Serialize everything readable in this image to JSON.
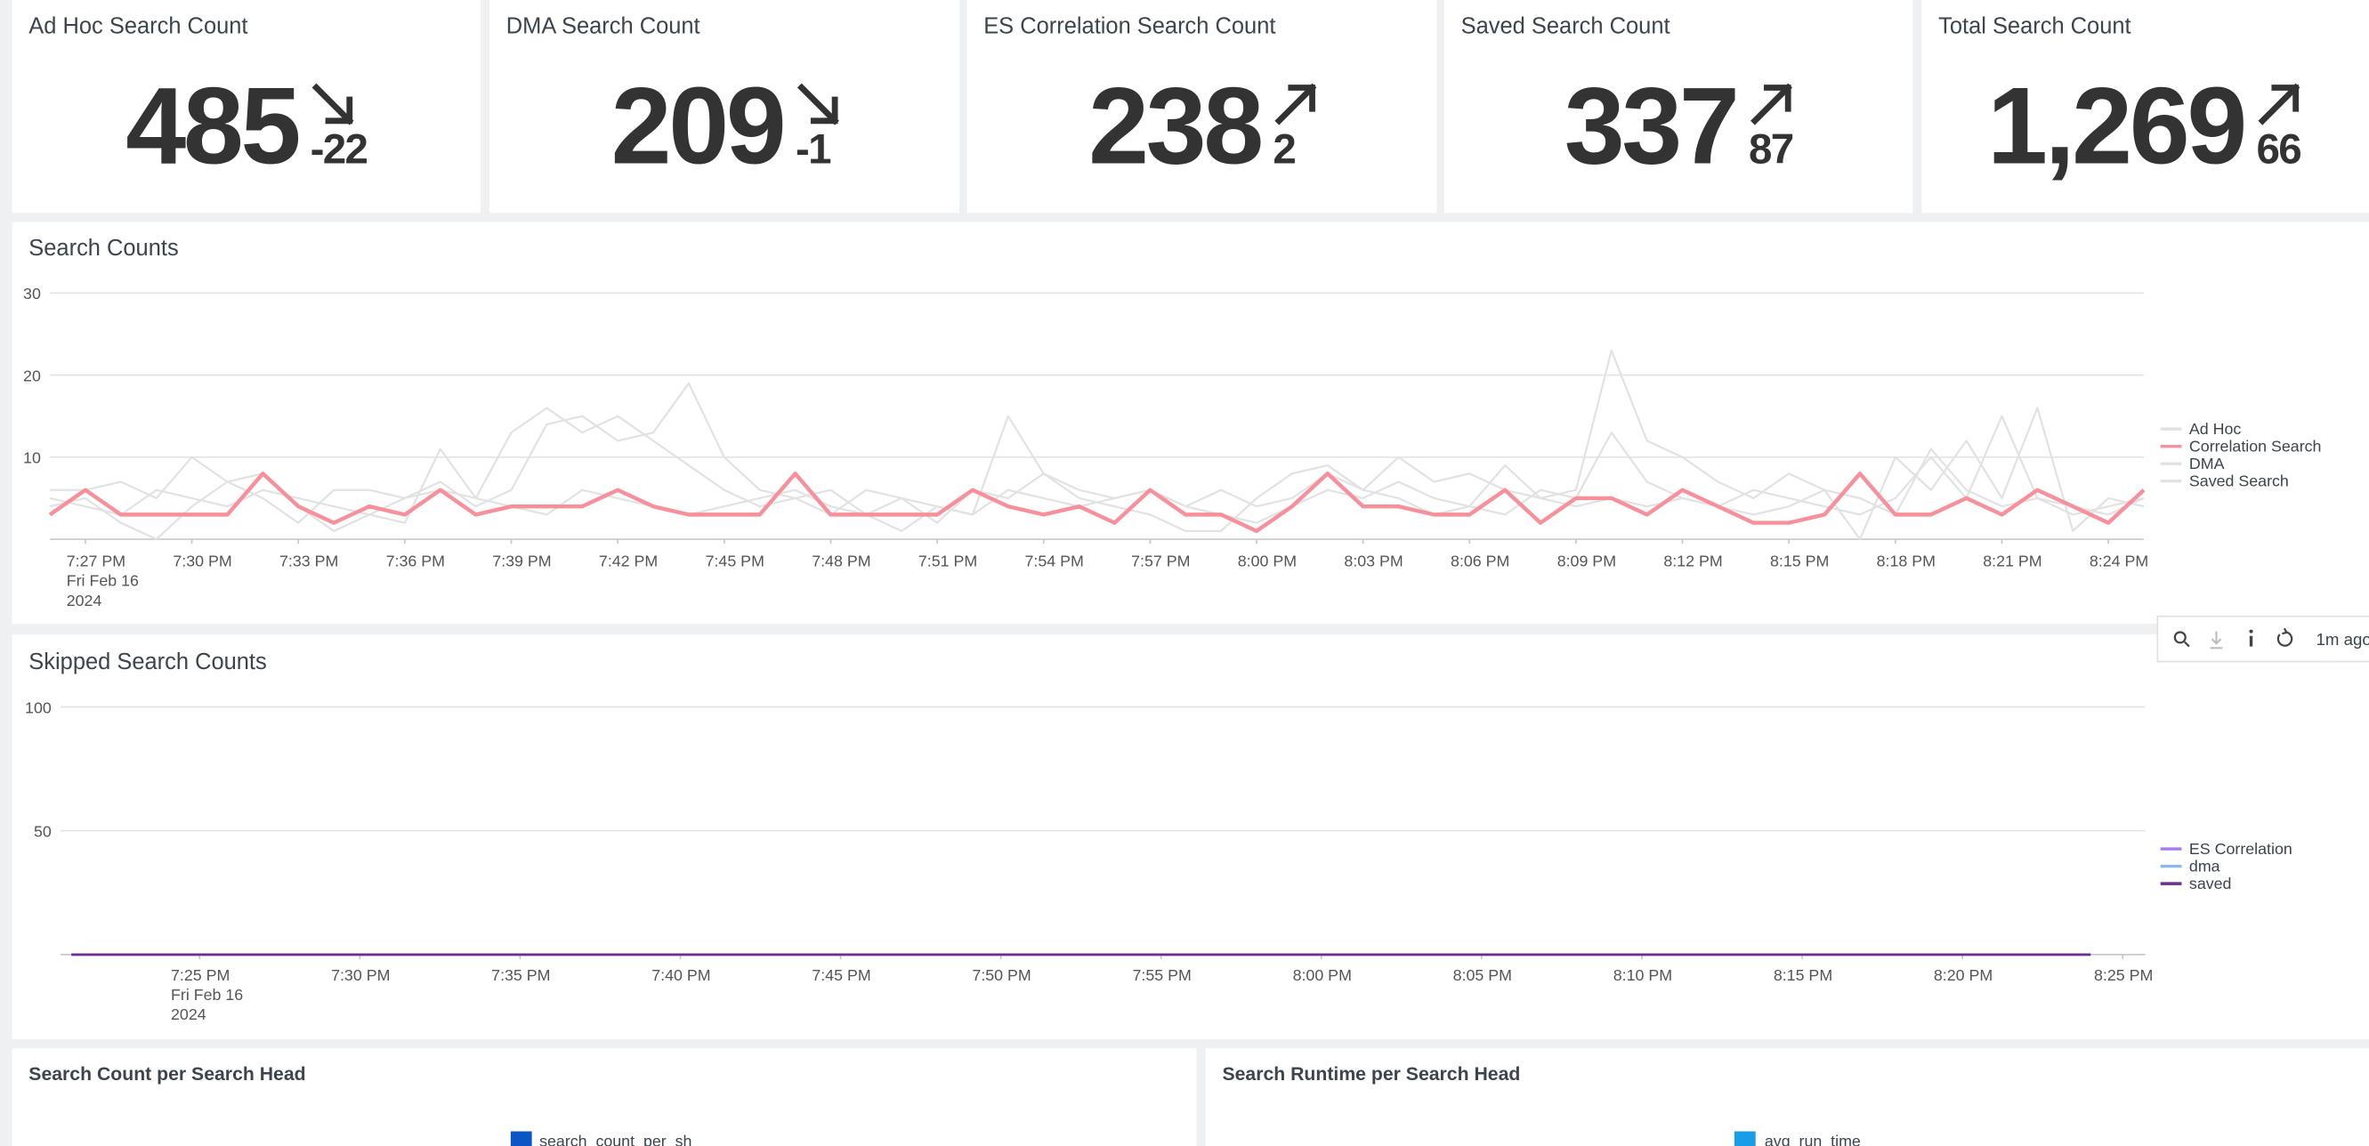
{
  "kpis": [
    {
      "title": "Ad Hoc Search Count",
      "value": "485",
      "delta": -22
    },
    {
      "title": "DMA Search Count",
      "value": "209",
      "delta": -1
    },
    {
      "title": "ES Correlation Search Count",
      "value": "238",
      "delta": 2
    },
    {
      "title": "Saved Search Count",
      "value": "337",
      "delta": 87
    },
    {
      "title": "Total Search Count",
      "value": "1,269",
      "delta": 66
    }
  ],
  "chart_data": [
    {
      "type": "line",
      "title": "Search Counts",
      "x": [
        "19:26",
        "19:27",
        "19:28",
        "19:29",
        "19:30",
        "19:31",
        "19:32",
        "19:33",
        "19:34",
        "19:35",
        "19:36",
        "19:37",
        "19:38",
        "19:39",
        "19:40",
        "19:41",
        "19:42",
        "19:43",
        "19:44",
        "19:45",
        "19:46",
        "19:47",
        "19:48",
        "19:49",
        "19:50",
        "19:51",
        "19:52",
        "19:53",
        "19:54",
        "19:55",
        "19:56",
        "19:57",
        "19:58",
        "19:59",
        "20:00",
        "20:01",
        "20:02",
        "20:03",
        "20:04",
        "20:05",
        "20:06",
        "20:07",
        "20:08",
        "20:09",
        "20:10",
        "20:11",
        "20:12",
        "20:13",
        "20:14",
        "20:15",
        "20:16",
        "20:17",
        "20:18",
        "20:19",
        "20:20",
        "20:21",
        "20:22",
        "20:23",
        "20:24",
        "20:25"
      ],
      "xlim": [
        "19:26",
        "20:25"
      ],
      "xticks": [
        {
          "value": "19:27",
          "label": "7:27 PM"
        },
        {
          "value": "19:30",
          "label": "7:30 PM"
        },
        {
          "value": "19:33",
          "label": "7:33 PM"
        },
        {
          "value": "19:36",
          "label": "7:36 PM"
        },
        {
          "value": "19:39",
          "label": "7:39 PM"
        },
        {
          "value": "19:42",
          "label": "7:42 PM"
        },
        {
          "value": "19:45",
          "label": "7:45 PM"
        },
        {
          "value": "19:48",
          "label": "7:48 PM"
        },
        {
          "value": "19:51",
          "label": "7:51 PM"
        },
        {
          "value": "19:54",
          "label": "7:54 PM"
        },
        {
          "value": "19:57",
          "label": "7:57 PM"
        },
        {
          "value": "20:00",
          "label": "8:00 PM"
        },
        {
          "value": "20:03",
          "label": "8:03 PM"
        },
        {
          "value": "20:06",
          "label": "8:06 PM"
        },
        {
          "value": "20:09",
          "label": "8:09 PM"
        },
        {
          "value": "20:12",
          "label": "8:12 PM"
        },
        {
          "value": "20:15",
          "label": "8:15 PM"
        },
        {
          "value": "20:18",
          "label": "8:18 PM"
        },
        {
          "value": "20:21",
          "label": "8:21 PM"
        },
        {
          "value": "20:24",
          "label": "8:24 PM"
        }
      ],
      "xtick_date": [
        "Fri Feb 16",
        "2024"
      ],
      "ylim": [
        0,
        30
      ],
      "yticks": [
        10,
        20,
        30
      ],
      "grid": true,
      "legend": "right",
      "series": [
        {
          "name": "Ad Hoc",
          "color": "#e2e2e2",
          "values": [
            5,
            4,
            3,
            6,
            5,
            4,
            6,
            5,
            4,
            3,
            5,
            6,
            5,
            4,
            3,
            6,
            5,
            4,
            3,
            4,
            5,
            6,
            4,
            3,
            5,
            4,
            3,
            6,
            5,
            4,
            5,
            6,
            4,
            3,
            2,
            4,
            6,
            5,
            7,
            5,
            4,
            3,
            6,
            5,
            13,
            7,
            5,
            4,
            3,
            4,
            6,
            5,
            3,
            11,
            6,
            4,
            5,
            3,
            4,
            5
          ]
        },
        {
          "name": "Correlation Search",
          "color": "#f7909a",
          "values": [
            3,
            6,
            3,
            3,
            3,
            3,
            8,
            4,
            2,
            4,
            3,
            6,
            3,
            4,
            4,
            4,
            6,
            4,
            3,
            3,
            3,
            8,
            3,
            3,
            3,
            3,
            6,
            4,
            3,
            4,
            2,
            6,
            3,
            3,
            1,
            4,
            8,
            4,
            4,
            3,
            3,
            6,
            2,
            5,
            5,
            3,
            6,
            4,
            2,
            2,
            3,
            8,
            3,
            3,
            5,
            3,
            6,
            4,
            2,
            6
          ]
        },
        {
          "name": "DMA",
          "color": "#e2e2e2",
          "values": [
            6,
            6,
            7,
            5,
            10,
            7,
            5,
            2,
            6,
            6,
            5,
            7,
            4,
            6,
            14,
            15,
            12,
            13,
            19,
            10,
            6,
            5,
            3,
            6,
            5,
            2,
            6,
            5,
            8,
            6,
            5,
            6,
            4,
            6,
            4,
            5,
            8,
            6,
            10,
            7,
            8,
            6,
            5,
            4,
            5,
            4,
            5,
            4,
            6,
            5,
            4,
            3,
            5,
            10,
            5,
            15,
            5,
            4,
            3,
            5
          ]
        },
        {
          "name": "Saved Search",
          "color": "#e2e2e2",
          "values": [
            4,
            5,
            2,
            0,
            4,
            7,
            8,
            4,
            1,
            3,
            2,
            11,
            5,
            13,
            16,
            13,
            15,
            12,
            9,
            6,
            4,
            5,
            6,
            3,
            1,
            4,
            3,
            15,
            8,
            5,
            4,
            3,
            1,
            1,
            5,
            8,
            9,
            6,
            5,
            3,
            4,
            9,
            5,
            6,
            23,
            12,
            10,
            7,
            5,
            8,
            6,
            0,
            10,
            6,
            12,
            5,
            16,
            1,
            5,
            4
          ]
        }
      ]
    },
    {
      "type": "line",
      "title": "Skipped Search Counts",
      "x": [
        "19:21",
        "19:25",
        "19:30",
        "19:35",
        "19:40",
        "19:45",
        "19:50",
        "19:55",
        "20:00",
        "20:05",
        "20:10",
        "20:15",
        "20:20",
        "20:24"
      ],
      "xlim": [
        "19:20",
        "20:25"
      ],
      "xticks": [
        {
          "value": "19:25",
          "label": "7:25 PM"
        },
        {
          "value": "19:30",
          "label": "7:30 PM"
        },
        {
          "value": "19:35",
          "label": "7:35 PM"
        },
        {
          "value": "19:40",
          "label": "7:40 PM"
        },
        {
          "value": "19:45",
          "label": "7:45 PM"
        },
        {
          "value": "19:50",
          "label": "7:50 PM"
        },
        {
          "value": "19:55",
          "label": "7:55 PM"
        },
        {
          "value": "20:00",
          "label": "8:00 PM"
        },
        {
          "value": "20:05",
          "label": "8:05 PM"
        },
        {
          "value": "20:10",
          "label": "8:10 PM"
        },
        {
          "value": "20:15",
          "label": "8:15 PM"
        },
        {
          "value": "20:20",
          "label": "8:20 PM"
        },
        {
          "value": "20:25",
          "label": "8:25 PM"
        }
      ],
      "xtick_date": [
        "Fri Feb 16",
        "2024"
      ],
      "ylim": [
        0,
        100
      ],
      "yticks": [
        50,
        100
      ],
      "grid": true,
      "legend": "right",
      "series": [
        {
          "name": "ES Correlation",
          "color": "#a77ce8",
          "values": [
            0,
            0,
            0,
            0,
            0,
            0,
            0,
            0,
            0,
            0,
            0,
            0,
            0,
            0
          ]
        },
        {
          "name": "dma",
          "color": "#8ab8ea",
          "values": [
            0,
            0,
            0,
            0,
            0,
            0,
            0,
            0,
            0,
            0,
            0,
            0,
            0,
            0
          ]
        },
        {
          "name": "saved",
          "color": "#6b2f93",
          "values": [
            0,
            0,
            0,
            0,
            0,
            0,
            0,
            0,
            0,
            0,
            0,
            0,
            0,
            0
          ]
        }
      ]
    }
  ],
  "toolbar": {
    "status": "1m ago"
  },
  "panels": [
    {
      "title": "Search Count per Search Head",
      "legend": "search_count_per_sh",
      "color": "#0b55c7"
    },
    {
      "title": "Search Runtime per Search Head",
      "legend": "avg_run_time",
      "color": "#1a9de8"
    }
  ]
}
